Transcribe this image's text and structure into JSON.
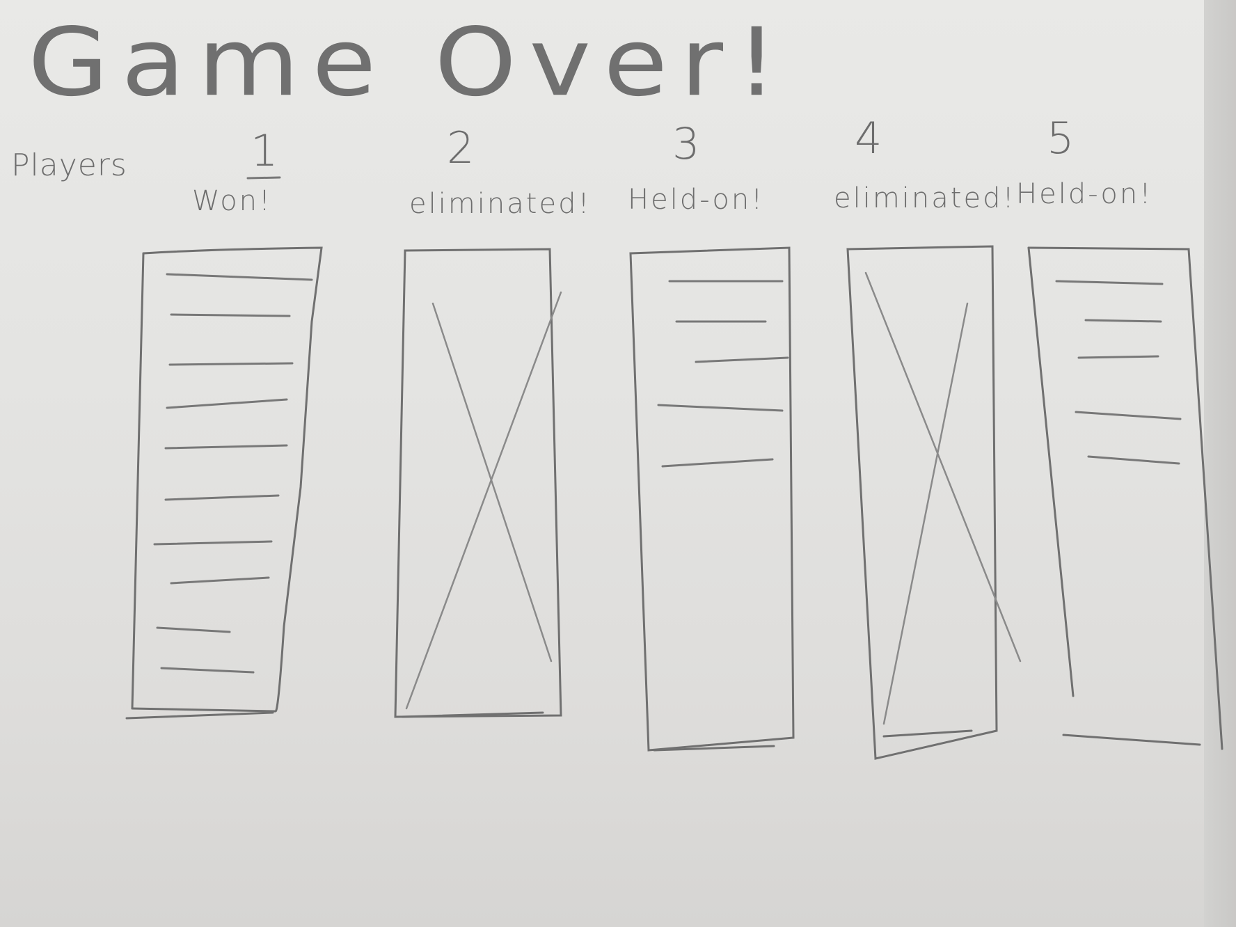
{
  "title": "Game Over!",
  "players_label": "Players",
  "players": [
    {
      "number": "1",
      "status": "Won!",
      "eliminated": false
    },
    {
      "number": "2",
      "status": "eliminated!",
      "eliminated": true
    },
    {
      "number": "3",
      "status": "Held-on!",
      "eliminated": false
    },
    {
      "number": "4",
      "status": "eliminated!",
      "eliminated": true
    },
    {
      "number": "5",
      "status": "Held-on!",
      "eliminated": false
    }
  ]
}
